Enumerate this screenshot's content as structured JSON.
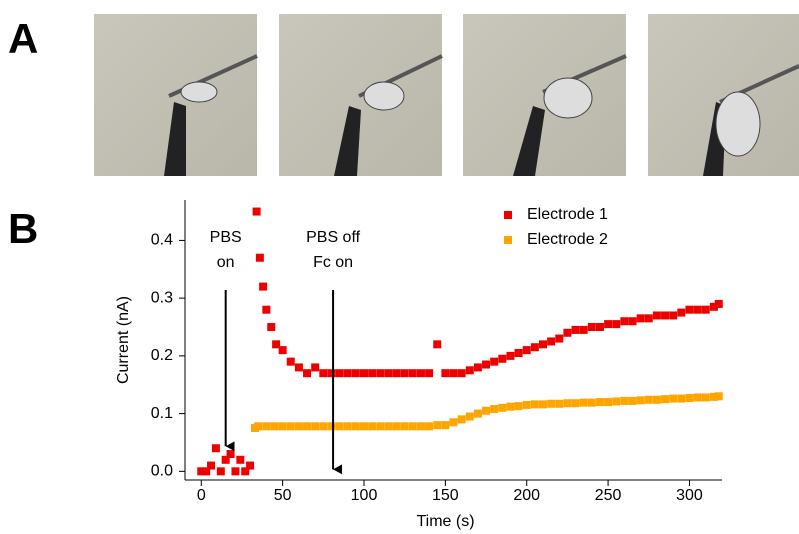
{
  "panels": {
    "a_label": "A",
    "b_label": "B"
  },
  "chart_data": {
    "type": "scatter",
    "xlabel": "Time (s)",
    "ylabel": "Current (nA)",
    "xlim": [
      -10,
      320
    ],
    "ylim": [
      -0.015,
      0.47
    ],
    "xticks": [
      0,
      50,
      100,
      150,
      200,
      250,
      300
    ],
    "yticks": [
      {
        "value": 0,
        "label": "0.0"
      },
      0.1,
      0.2,
      0.3,
      0.4
    ],
    "grid": false,
    "legend": "upper right",
    "annotations": [
      {
        "text": [
          "PBS",
          "on"
        ],
        "xy": [
          15,
          0.04
        ]
      },
      {
        "text": [
          "PBS off",
          "Fc on"
        ],
        "xy": [
          81,
          0
        ]
      }
    ],
    "series": [
      {
        "name": "Electrode 1",
        "color": "#ee0000",
        "x": [
          0,
          3,
          6,
          9,
          12,
          15,
          18,
          21,
          24,
          27,
          30,
          34,
          36,
          38,
          40,
          43,
          46,
          50,
          55,
          60,
          65,
          70,
          75,
          80,
          85,
          90,
          95,
          100,
          105,
          110,
          115,
          120,
          125,
          130,
          135,
          140,
          145,
          150,
          155,
          160,
          165,
          170,
          175,
          180,
          185,
          190,
          195,
          200,
          205,
          210,
          215,
          220,
          225,
          230,
          235,
          240,
          245,
          250,
          255,
          260,
          265,
          270,
          275,
          280,
          285,
          290,
          295,
          300,
          305,
          310,
          315,
          318
        ],
        "values": [
          0,
          0,
          0.01,
          0.04,
          0,
          0.02,
          0.03,
          0,
          0.02,
          0,
          0.01,
          0.45,
          0.37,
          0.32,
          0.28,
          0.25,
          0.22,
          0.21,
          0.19,
          0.18,
          0.17,
          0.18,
          0.17,
          0.17,
          0.17,
          0.17,
          0.17,
          0.17,
          0.17,
          0.17,
          0.17,
          0.17,
          0.17,
          0.17,
          0.17,
          0.17,
          0.22,
          0.17,
          0.17,
          0.17,
          0.175,
          0.18,
          0.185,
          0.19,
          0.195,
          0.2,
          0.205,
          0.21,
          0.215,
          0.22,
          0.225,
          0.23,
          0.24,
          0.245,
          0.245,
          0.25,
          0.25,
          0.255,
          0.255,
          0.26,
          0.26,
          0.265,
          0.265,
          0.27,
          0.27,
          0.27,
          0.275,
          0.28,
          0.28,
          0.28,
          0.285,
          0.29
        ]
      },
      {
        "name": "Electrode 2",
        "color": "#ffa500",
        "x": [
          33,
          35,
          40,
          45,
          50,
          55,
          60,
          65,
          70,
          75,
          80,
          85,
          90,
          95,
          100,
          105,
          110,
          115,
          120,
          125,
          130,
          135,
          140,
          145,
          150,
          155,
          160,
          165,
          170,
          175,
          180,
          185,
          190,
          195,
          200,
          205,
          210,
          215,
          220,
          225,
          230,
          235,
          240,
          245,
          250,
          255,
          260,
          265,
          270,
          275,
          280,
          285,
          290,
          295,
          300,
          305,
          310,
          315,
          318
        ],
        "values": [
          0.075,
          0.078,
          0.078,
          0.078,
          0.078,
          0.078,
          0.078,
          0.078,
          0.078,
          0.078,
          0.078,
          0.078,
          0.078,
          0.078,
          0.078,
          0.078,
          0.078,
          0.078,
          0.078,
          0.078,
          0.078,
          0.078,
          0.078,
          0.08,
          0.08,
          0.085,
          0.09,
          0.095,
          0.1,
          0.105,
          0.108,
          0.11,
          0.112,
          0.113,
          0.115,
          0.116,
          0.116,
          0.117,
          0.117,
          0.118,
          0.118,
          0.119,
          0.119,
          0.12,
          0.12,
          0.121,
          0.122,
          0.122,
          0.123,
          0.124,
          0.124,
          0.125,
          0.126,
          0.126,
          0.127,
          0.128,
          0.128,
          0.129,
          0.13
        ]
      }
    ]
  }
}
